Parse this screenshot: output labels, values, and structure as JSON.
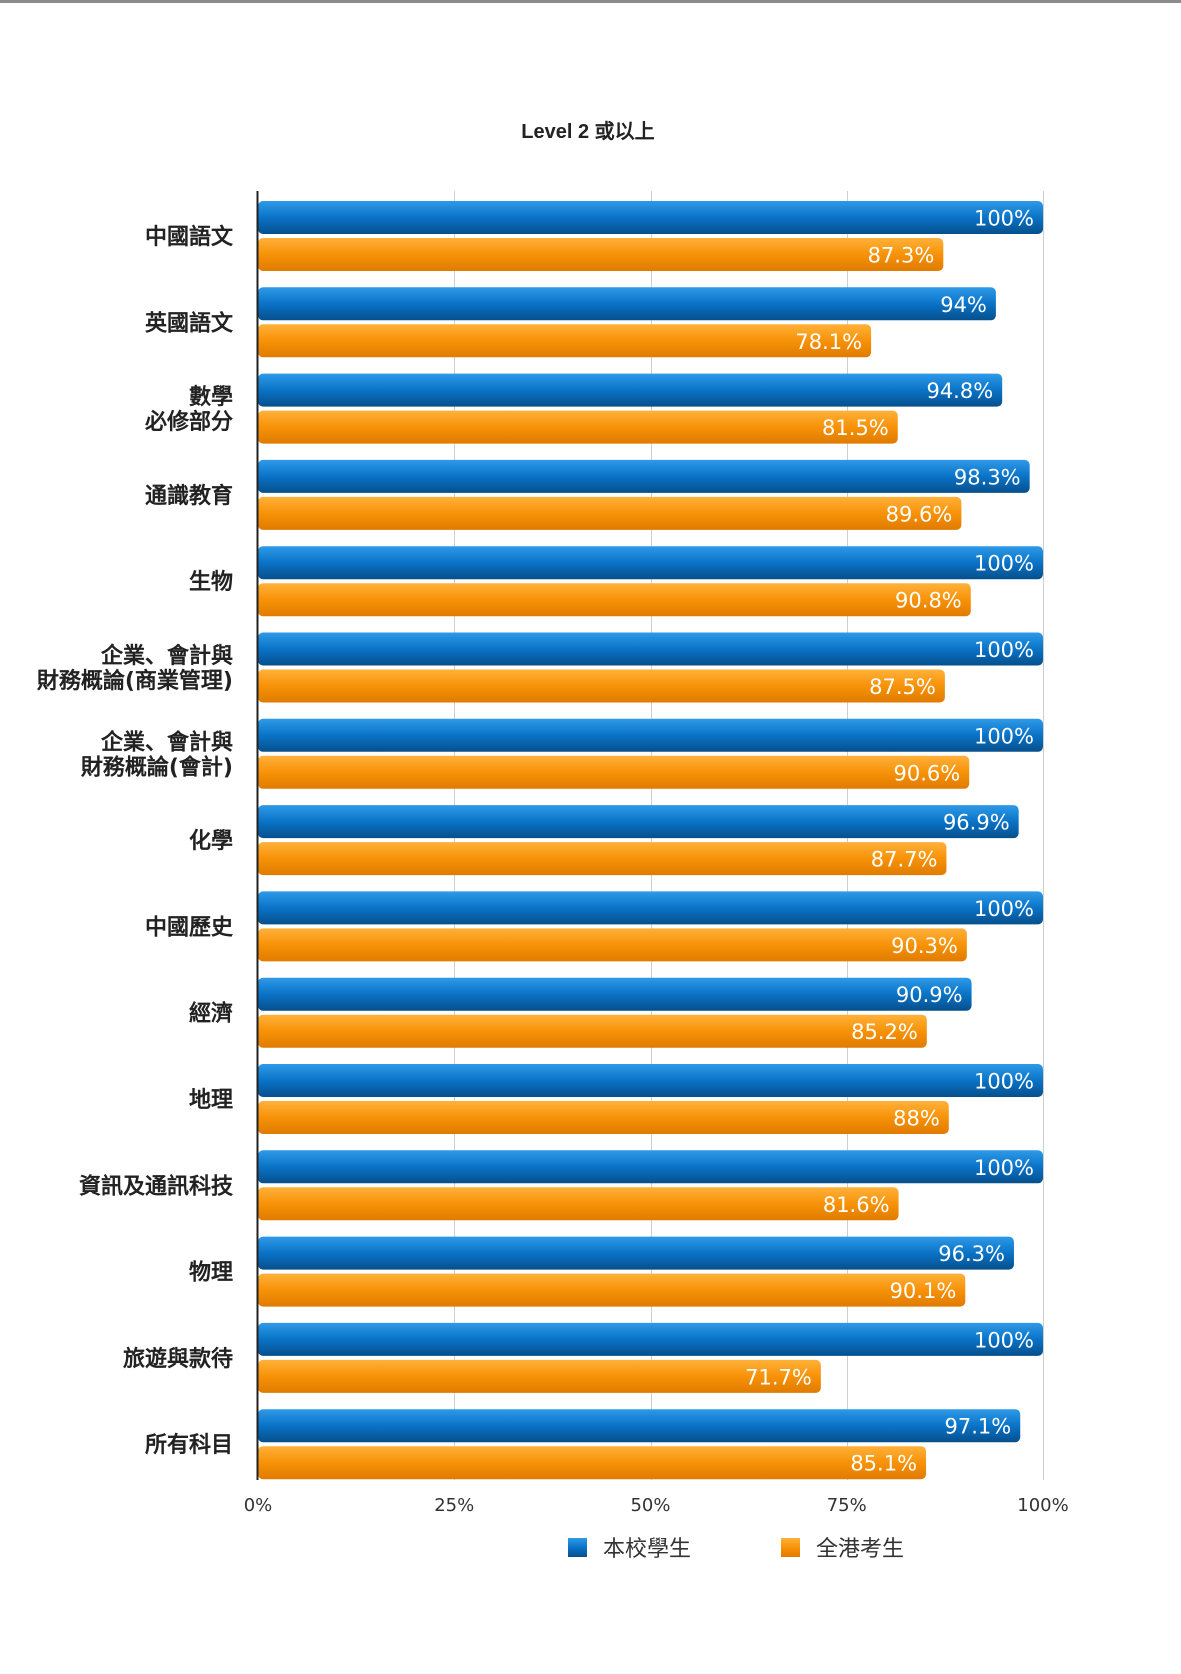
{
  "chart_data": {
    "type": "bar",
    "orientation": "horizontal",
    "title": "Level 2 或以上",
    "xlabel": "",
    "ylabel": "",
    "xlim": [
      0,
      100
    ],
    "tick_labels": [
      "0%",
      "25%",
      "50%",
      "75%",
      "100%"
    ],
    "tick_values": [
      0,
      25,
      50,
      75,
      100
    ],
    "grid": true,
    "legend_position": "bottom",
    "categories": [
      "中國語文",
      "英國語文",
      "數學\n必修部分",
      "通識教育",
      "生物",
      "企業、會計與\n財務概論(商業管理)",
      "企業、會計與\n財務概論(會計)",
      "化學",
      "中國歷史",
      "經濟",
      "地理",
      "資訊及通訊科技",
      "物理",
      "旅遊與款待",
      "所有科目"
    ],
    "series": [
      {
        "name": "本校學生",
        "color": "#0a73c7",
        "values": [
          100,
          94,
          94.8,
          98.3,
          100,
          100,
          100,
          96.9,
          100,
          90.9,
          100,
          100,
          96.3,
          100,
          97.1
        ],
        "labels": [
          "100%",
          "94%",
          "94.8%",
          "98.3%",
          "100%",
          "100%",
          "100%",
          "96.9%",
          "100%",
          "90.9%",
          "100%",
          "100%",
          "96.3%",
          "100%",
          "97.1%"
        ]
      },
      {
        "name": "全港考生",
        "color": "#f79208",
        "values": [
          87.3,
          78.1,
          81.5,
          89.6,
          90.8,
          87.5,
          90.6,
          87.7,
          90.3,
          85.2,
          88,
          81.6,
          90.1,
          71.7,
          85.1
        ],
        "labels": [
          "87.3%",
          "78.1%",
          "81.5%",
          "89.6%",
          "90.8%",
          "87.5%",
          "90.6%",
          "87.7%",
          "90.3%",
          "85.2%",
          "88%",
          "81.6%",
          "90.1%",
          "71.7%",
          "85.1%"
        ]
      }
    ]
  }
}
